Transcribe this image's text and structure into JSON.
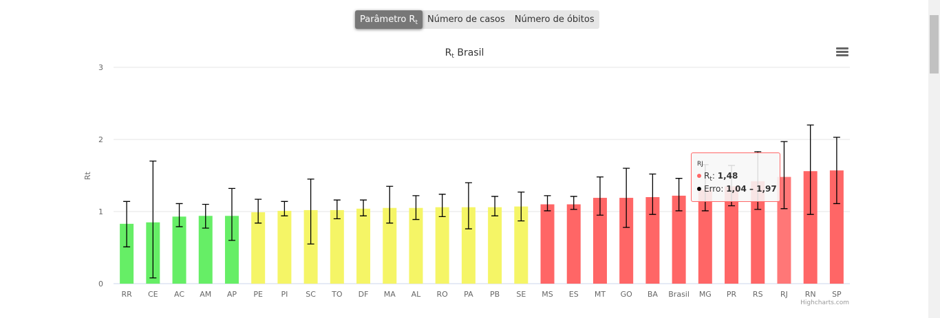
{
  "buttons": [
    {
      "label": "Parâmetro R",
      "sub": "t",
      "active": true
    },
    {
      "label": "Número de casos"
    },
    {
      "label": "Número de óbitos"
    }
  ],
  "menu_icon": "hamburger-menu-icon",
  "credit": "Highcharts.com",
  "colors": {
    "green": "#66ee66",
    "yellow": "#f5f566",
    "red": "#ff6666",
    "hover": "#ff7777"
  },
  "chart_data": {
    "type": "bar",
    "title": "R",
    "title_sub": "t",
    "title_rest": " Brasil",
    "ylabel": "Rt",
    "ylim": [
      0,
      3
    ],
    "yticks": [
      "0",
      "1",
      "2",
      "3"
    ],
    "grid": true,
    "categories": [
      "RR",
      "CE",
      "AC",
      "AM",
      "AP",
      "PE",
      "PI",
      "SC",
      "TO",
      "DF",
      "MA",
      "AL",
      "RO",
      "PA",
      "PB",
      "SE",
      "MS",
      "ES",
      "MT",
      "GO",
      "BA",
      "Brasil",
      "MG",
      "PR",
      "RS",
      "RJ",
      "RN",
      "SP"
    ],
    "values": [
      0.83,
      0.85,
      0.93,
      0.94,
      0.94,
      0.99,
      1.01,
      1.02,
      1.02,
      1.04,
      1.05,
      1.05,
      1.06,
      1.06,
      1.06,
      1.07,
      1.1,
      1.1,
      1.19,
      1.19,
      1.2,
      1.22,
      1.3,
      1.35,
      1.42,
      1.48,
      1.56,
      1.57
    ],
    "error_low": [
      0.51,
      0.08,
      0.79,
      0.77,
      0.6,
      0.84,
      0.94,
      0.55,
      0.9,
      0.94,
      0.84,
      0.89,
      0.93,
      0.76,
      0.94,
      0.87,
      1.01,
      1.03,
      0.95,
      0.78,
      0.96,
      1.01,
      1.01,
      1.08,
      1.03,
      1.04,
      0.96,
      1.11
    ],
    "error_high": [
      1.14,
      1.7,
      1.11,
      1.1,
      1.32,
      1.17,
      1.14,
      1.45,
      1.16,
      1.16,
      1.35,
      1.22,
      1.24,
      1.4,
      1.21,
      1.27,
      1.22,
      1.21,
      1.48,
      1.6,
      1.52,
      1.46,
      1.65,
      1.64,
      1.83,
      1.97,
      2.2,
      2.03
    ],
    "color_groups": [
      "green",
      "green",
      "green",
      "green",
      "green",
      "yellow",
      "yellow",
      "yellow",
      "yellow",
      "yellow",
      "yellow",
      "yellow",
      "yellow",
      "yellow",
      "yellow",
      "yellow",
      "red",
      "red",
      "red",
      "red",
      "red",
      "red",
      "red",
      "red",
      "red",
      "hover",
      "red",
      "red"
    ]
  },
  "tooltip": {
    "header": "RJ",
    "rt_label": "R",
    "rt_sub": "t",
    "rt_sep": ": ",
    "rt_value": "1,48",
    "err_label": "Erro: ",
    "err_value": "1,04 – 1,97",
    "rt_color": "#ff6666",
    "err_color": "#000000"
  }
}
